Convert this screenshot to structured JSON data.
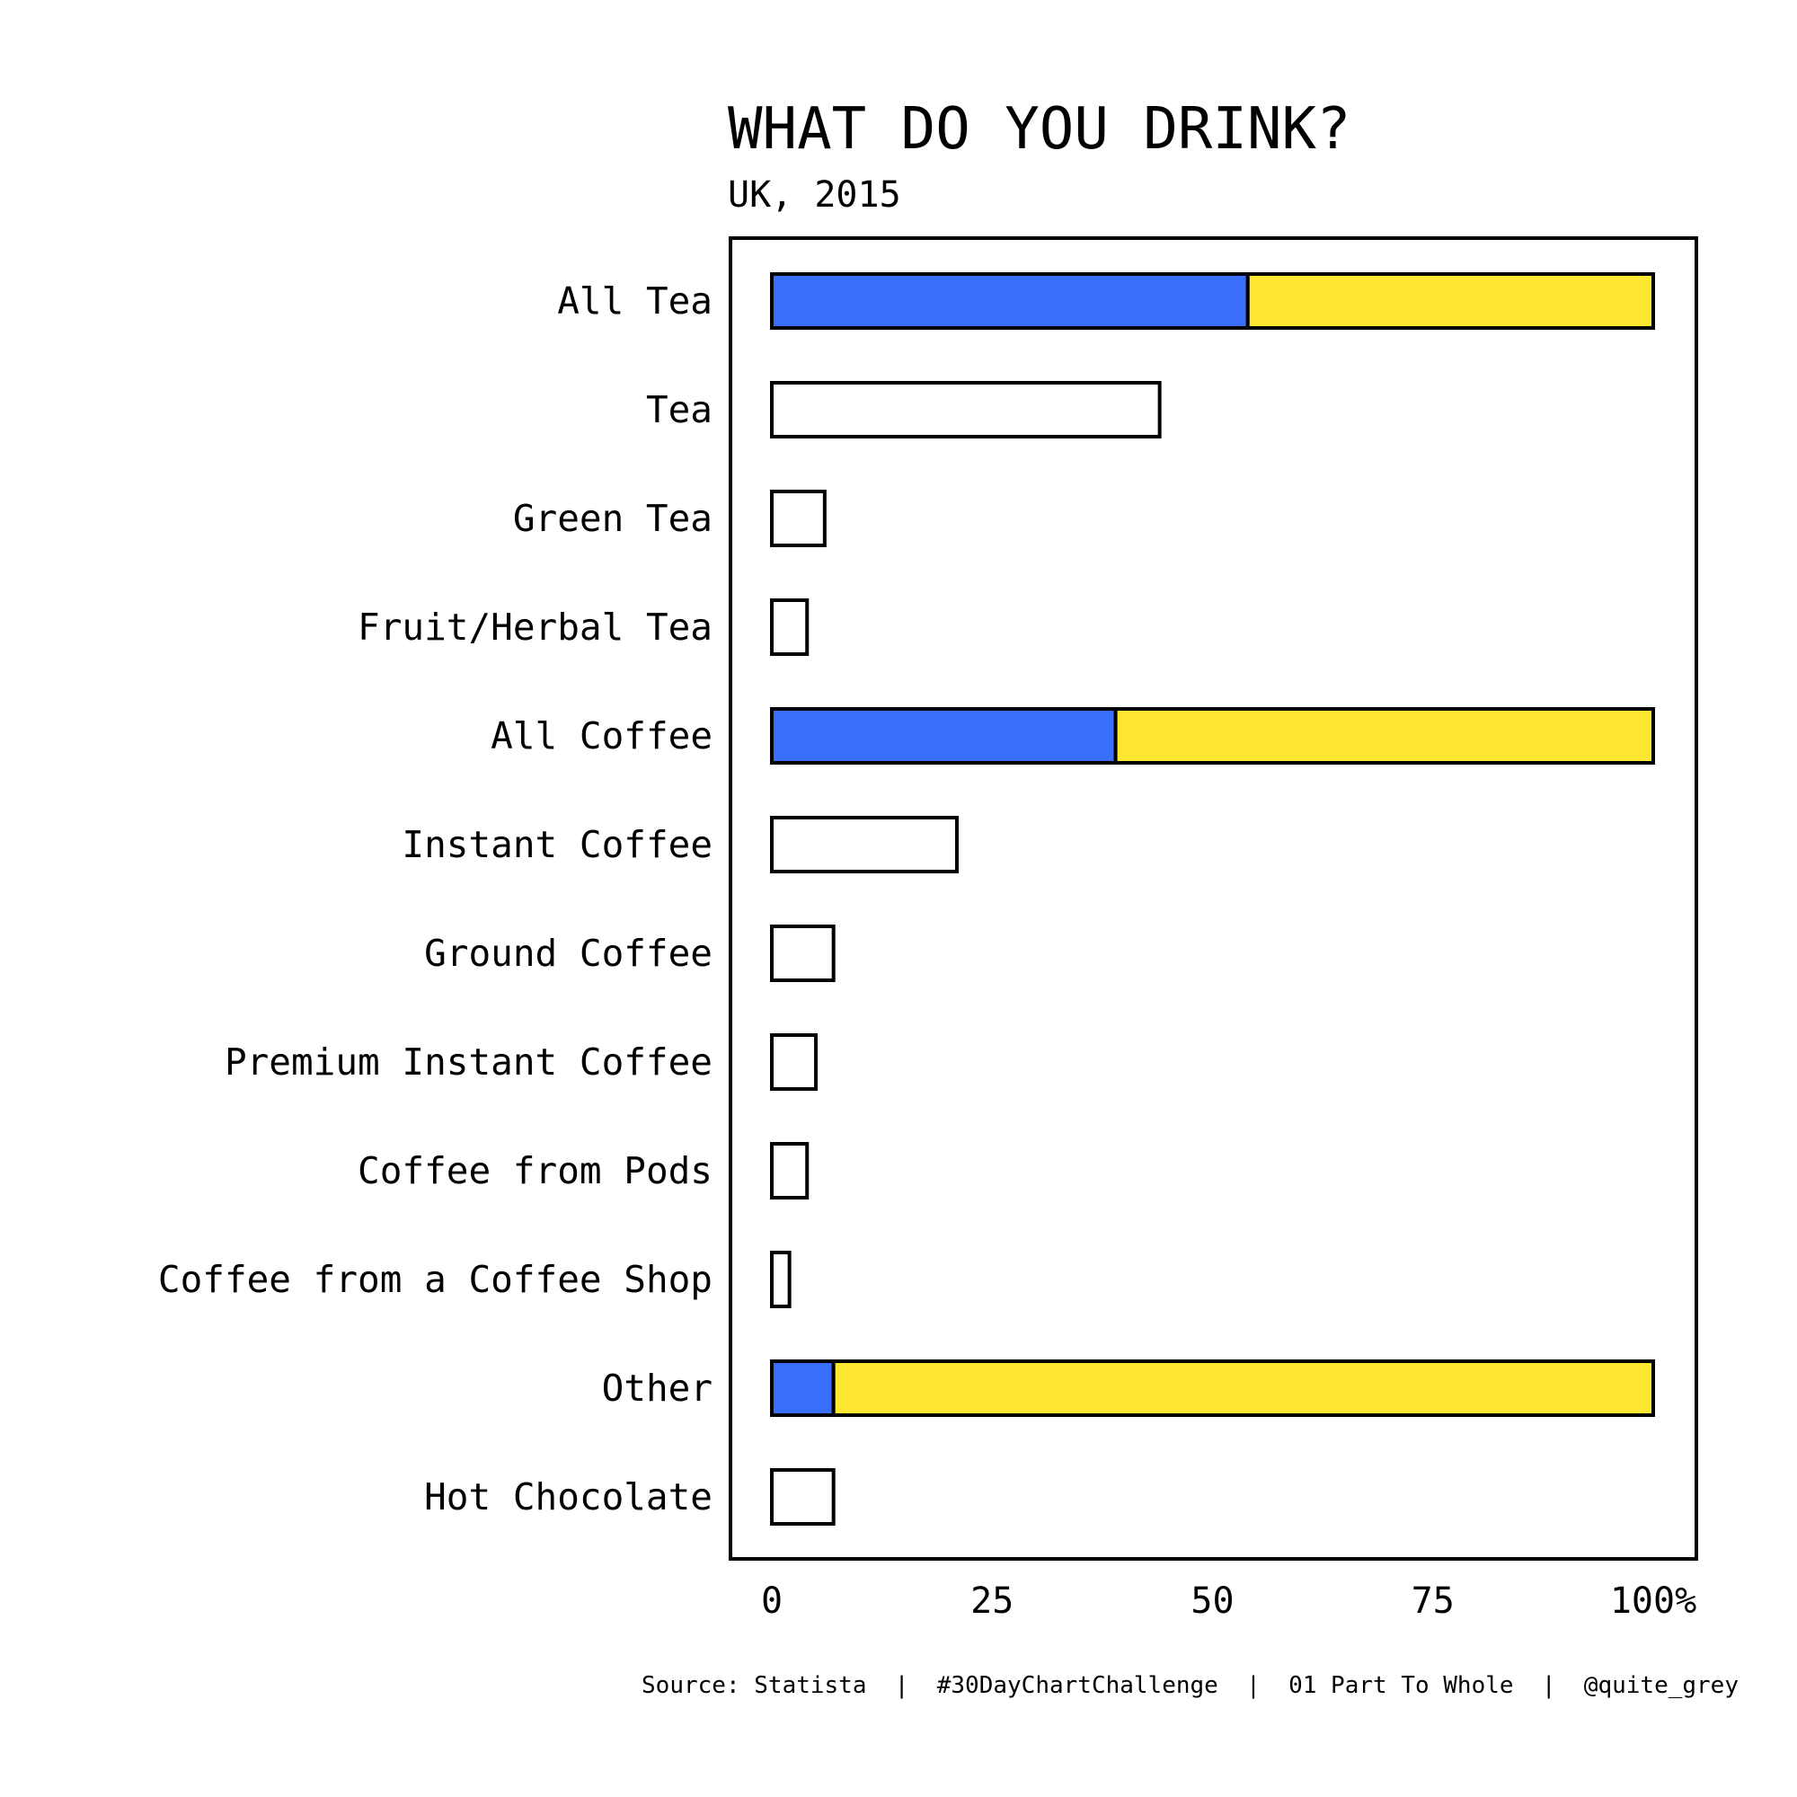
{
  "chart_data": {
    "type": "bar",
    "title": "WHAT DO YOU DRINK?",
    "subtitle": "UK, 2015",
    "categories": [
      "All Tea",
      "Tea",
      "Green Tea",
      "Fruit/Herbal Tea",
      "All Coffee",
      "Instant Coffee",
      "Ground Coffee",
      "Premium Instant Coffee",
      "Coffee from Pods",
      "Coffee from a Coffee Shop",
      "Other",
      "Hot Chocolate"
    ],
    "values": [
      54,
      44,
      6,
      4,
      39,
      21,
      7,
      5,
      4,
      2,
      7,
      7
    ],
    "row_kind": [
      "total",
      "part",
      "part",
      "part",
      "total",
      "part",
      "part",
      "part",
      "part",
      "part",
      "total",
      "part"
    ],
    "total_value": 100,
    "xlim": [
      0,
      100
    ],
    "x_ticks": [
      "0",
      "25",
      "50",
      "75",
      "100%"
    ],
    "x_tick_values": [
      0,
      25,
      50,
      75,
      100
    ],
    "colors": {
      "share": "#3a6ffb",
      "remainder": "#fde731",
      "part_fill": "#ffffff",
      "stroke": "#000000"
    }
  },
  "caption": "Source: Statista  |  #30DayChartChallenge  |  01 Part To Whole  |  @quite_grey"
}
